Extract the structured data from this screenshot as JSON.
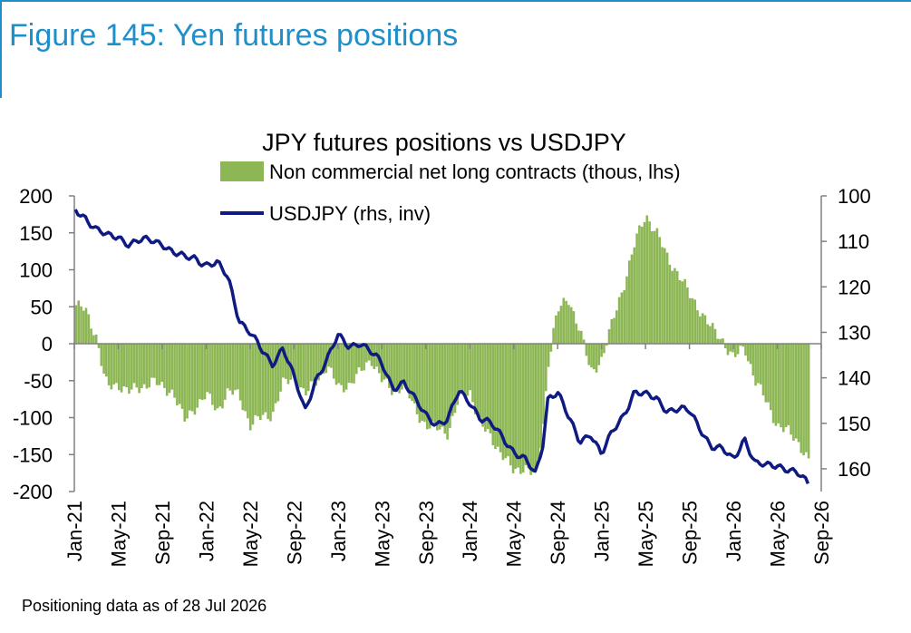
{
  "figure_title": "Figure 145: Yen futures positions",
  "footnote": "Positioning data as of 28 Jul 2026",
  "colors": {
    "bars": "#8db755",
    "line": "#0f1b82",
    "title": "#1f8fc9",
    "axis": "#808080"
  },
  "chart_data": {
    "type": "bar+line",
    "title": "JPY futures positions  vs USDJPY",
    "xlabel": "",
    "ylabel_left": "",
    "ylabel_right": "",
    "legend_position": "top-center",
    "grid": false,
    "x_ticks": [
      "Jan-21",
      "May-21",
      "Sep-21",
      "Jan-22",
      "May-22",
      "Sep-22",
      "Jan-23",
      "May-23",
      "Sep-23",
      "Jan-24",
      "May-24",
      "Sep-24",
      "Jan-25",
      "May-25",
      "Sep-25",
      "Jan-26",
      "May-26",
      "Sep-26"
    ],
    "y_left": {
      "ylim": [
        -200,
        200
      ],
      "ticks": [
        "200",
        "150",
        "100",
        "50",
        "0",
        "-50",
        "-100",
        "-150",
        "-200"
      ]
    },
    "y_right": {
      "ylim": [
        100,
        165
      ],
      "inverted": true,
      "ticks": [
        "100",
        "110",
        "120",
        "130",
        "140",
        "150",
        "160"
      ]
    },
    "series": [
      {
        "name": "Non commercial net long contracts (thous, lhs)",
        "kind": "bar",
        "axis": "left",
        "points": [
          [
            "2021-01-05",
            52
          ],
          [
            "2021-02-01",
            45
          ],
          [
            "2021-03-01",
            10
          ],
          [
            "2021-03-20",
            -40
          ],
          [
            "2021-04-01",
            -60
          ],
          [
            "2021-05-01",
            -55
          ],
          [
            "2021-06-01",
            -65
          ],
          [
            "2021-07-01",
            -60
          ],
          [
            "2021-08-01",
            -50
          ],
          [
            "2021-09-01",
            -60
          ],
          [
            "2021-10-01",
            -65
          ],
          [
            "2021-11-01",
            -105
          ],
          [
            "2021-12-01",
            -85
          ],
          [
            "2022-01-01",
            -70
          ],
          [
            "2022-02-01",
            -90
          ],
          [
            "2022-03-01",
            -65
          ],
          [
            "2022-04-01",
            -70
          ],
          [
            "2022-05-01",
            -110
          ],
          [
            "2022-06-01",
            -100
          ],
          [
            "2022-07-01",
            -95
          ],
          [
            "2022-08-01",
            -55
          ],
          [
            "2022-09-01",
            -45
          ],
          [
            "2022-10-01",
            -70
          ],
          [
            "2022-11-01",
            -50
          ],
          [
            "2022-12-01",
            -30
          ],
          [
            "2023-01-01",
            -60
          ],
          [
            "2023-02-01",
            -55
          ],
          [
            "2023-03-01",
            -40
          ],
          [
            "2023-04-01",
            -20
          ],
          [
            "2023-05-01",
            -50
          ],
          [
            "2023-06-01",
            -65
          ],
          [
            "2023-07-01",
            -55
          ],
          [
            "2023-08-01",
            -90
          ],
          [
            "2023-09-01",
            -110
          ],
          [
            "2023-10-01",
            -115
          ],
          [
            "2023-11-01",
            -120
          ],
          [
            "2023-12-01",
            -75
          ],
          [
            "2024-01-01",
            -65
          ],
          [
            "2024-02-01",
            -110
          ],
          [
            "2024-03-01",
            -130
          ],
          [
            "2024-04-01",
            -150
          ],
          [
            "2024-05-01",
            -175
          ],
          [
            "2024-06-01",
            -165
          ],
          [
            "2024-07-01",
            -180
          ],
          [
            "2024-07-20",
            -120
          ],
          [
            "2024-08-05",
            -25
          ],
          [
            "2024-08-20",
            20
          ],
          [
            "2024-09-01",
            45
          ],
          [
            "2024-10-01",
            60
          ],
          [
            "2024-11-01",
            20
          ],
          [
            "2024-12-01",
            -40
          ],
          [
            "2025-01-01",
            -20
          ],
          [
            "2025-02-01",
            30
          ],
          [
            "2025-03-01",
            80
          ],
          [
            "2025-04-01",
            135
          ],
          [
            "2025-05-01",
            175
          ],
          [
            "2025-06-01",
            150
          ],
          [
            "2025-07-01",
            115
          ],
          [
            "2025-08-01",
            95
          ],
          [
            "2025-09-01",
            65
          ],
          [
            "2025-10-01",
            45
          ],
          [
            "2025-11-01",
            20
          ],
          [
            "2025-12-01",
            5
          ],
          [
            "2026-01-01",
            -20
          ],
          [
            "2026-02-01",
            -5
          ],
          [
            "2026-03-01",
            -50
          ],
          [
            "2026-04-01",
            -80
          ],
          [
            "2026-05-01",
            -110
          ],
          [
            "2026-06-01",
            -120
          ],
          [
            "2026-07-01",
            -135
          ],
          [
            "2026-07-28",
            -160
          ]
        ]
      },
      {
        "name": "USDJPY (rhs, inv)",
        "kind": "line",
        "axis": "right",
        "points": [
          [
            "2021-01-04",
            103
          ],
          [
            "2021-02-01",
            104.5
          ],
          [
            "2021-03-01",
            107.5
          ],
          [
            "2021-04-01",
            109
          ],
          [
            "2021-05-01",
            108.8
          ],
          [
            "2021-06-01",
            110.5
          ],
          [
            "2021-07-01",
            110
          ],
          [
            "2021-08-01",
            109.8
          ],
          [
            "2021-09-01",
            110.2
          ],
          [
            "2021-10-01",
            112.5
          ],
          [
            "2021-11-01",
            113.7
          ],
          [
            "2021-12-01",
            113.5
          ],
          [
            "2022-01-01",
            115
          ],
          [
            "2022-02-01",
            115
          ],
          [
            "2022-03-01",
            118
          ],
          [
            "2022-04-01",
            127
          ],
          [
            "2022-05-01",
            130
          ],
          [
            "2022-06-01",
            134
          ],
          [
            "2022-07-01",
            137
          ],
          [
            "2022-08-01",
            133
          ],
          [
            "2022-09-01",
            140
          ],
          [
            "2022-10-01",
            147.5
          ],
          [
            "2022-11-01",
            140
          ],
          [
            "2022-12-01",
            136
          ],
          [
            "2023-01-01",
            131
          ],
          [
            "2023-02-01",
            133
          ],
          [
            "2023-03-01",
            132
          ],
          [
            "2023-04-01",
            134.5
          ],
          [
            "2023-05-01",
            137
          ],
          [
            "2023-06-01",
            142
          ],
          [
            "2023-07-01",
            141
          ],
          [
            "2023-08-01",
            145
          ],
          [
            "2023-09-01",
            148
          ],
          [
            "2023-10-01",
            150
          ],
          [
            "2023-11-01",
            149.5
          ],
          [
            "2023-12-01",
            143
          ],
          [
            "2024-01-01",
            145
          ],
          [
            "2024-02-01",
            149
          ],
          [
            "2024-03-01",
            150.5
          ],
          [
            "2024-04-01",
            153
          ],
          [
            "2024-05-01",
            156
          ],
          [
            "2024-06-01",
            158
          ],
          [
            "2024-07-01",
            161.5
          ],
          [
            "2024-07-20",
            155
          ],
          [
            "2024-08-05",
            144
          ],
          [
            "2024-09-01",
            143
          ],
          [
            "2024-10-01",
            149
          ],
          [
            "2024-11-01",
            154
          ],
          [
            "2024-12-01",
            152
          ],
          [
            "2025-01-01",
            157
          ],
          [
            "2025-02-01",
            152
          ],
          [
            "2025-03-01",
            148
          ],
          [
            "2025-04-01",
            143
          ],
          [
            "2025-05-01",
            144
          ],
          [
            "2025-06-01",
            144.5
          ],
          [
            "2025-07-01",
            147
          ],
          [
            "2025-08-01",
            147
          ],
          [
            "2025-09-01",
            147.5
          ],
          [
            "2025-10-01",
            151
          ],
          [
            "2025-11-01",
            155
          ],
          [
            "2025-12-01",
            156
          ],
          [
            "2026-01-01",
            158
          ],
          [
            "2026-02-01",
            153
          ],
          [
            "2026-03-01",
            159
          ],
          [
            "2026-04-01",
            159.5
          ],
          [
            "2026-05-01",
            159
          ],
          [
            "2026-06-01",
            160
          ],
          [
            "2026-07-01",
            161.5
          ],
          [
            "2026-08-01",
            164
          ]
        ]
      }
    ]
  }
}
